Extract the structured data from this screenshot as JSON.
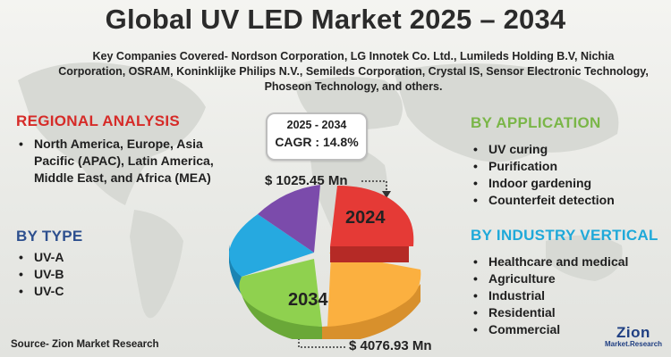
{
  "title": "Global UV LED Market 2025 – 2034",
  "companies": "Key Companies Covered- Nordson Corporation, LG Innotek Co. Ltd., Lumileds Holding B.V, Nichia Corporation, OSRAM, Koninklijke Philips N.V., Semileds Corporation, Crystal IS, Sensor Electronic Technology, Phoseon Technology, and others.",
  "regional": {
    "heading": "REGIONAL ANALYSIS",
    "items": [
      "North America, Europe, Asia Pacific (APAC), Latin America, Middle East, and Africa (MEA)"
    ]
  },
  "by_type": {
    "heading": "BY TYPE",
    "items": [
      "UV-A",
      "UV-B",
      "UV-C"
    ]
  },
  "by_application": {
    "heading": "BY APPLICATION",
    "items": [
      "UV curing",
      "Purification",
      "Indoor gardening",
      "Counterfeit detection"
    ]
  },
  "by_industry": {
    "heading": "BY INDUSTRY VERTICAL",
    "items": [
      "Healthcare and medical",
      "Agriculture",
      "Industrial",
      "Residential",
      "Commercial"
    ]
  },
  "cagr": {
    "period": "2025 - 2034",
    "value": "CAGR : 14.8%"
  },
  "market_2024": {
    "value": "$ 1025.45 Mn",
    "year_label": "2024"
  },
  "market_2034": {
    "value": "$ 4076.93 Mn",
    "year_label": "2034"
  },
  "pie": {
    "segments": [
      {
        "label": "2024",
        "color": "#e53a36"
      },
      {
        "label": "",
        "color": "#fbb040"
      },
      {
        "label": "2034",
        "color": "#8fd14f"
      },
      {
        "label": "",
        "color": "#26a9e0"
      },
      {
        "label": "",
        "color": "#7b4bab"
      }
    ]
  },
  "source": "Source- Zion Market Research",
  "logo": {
    "word": "Zion",
    "sub": "Market.Research"
  }
}
